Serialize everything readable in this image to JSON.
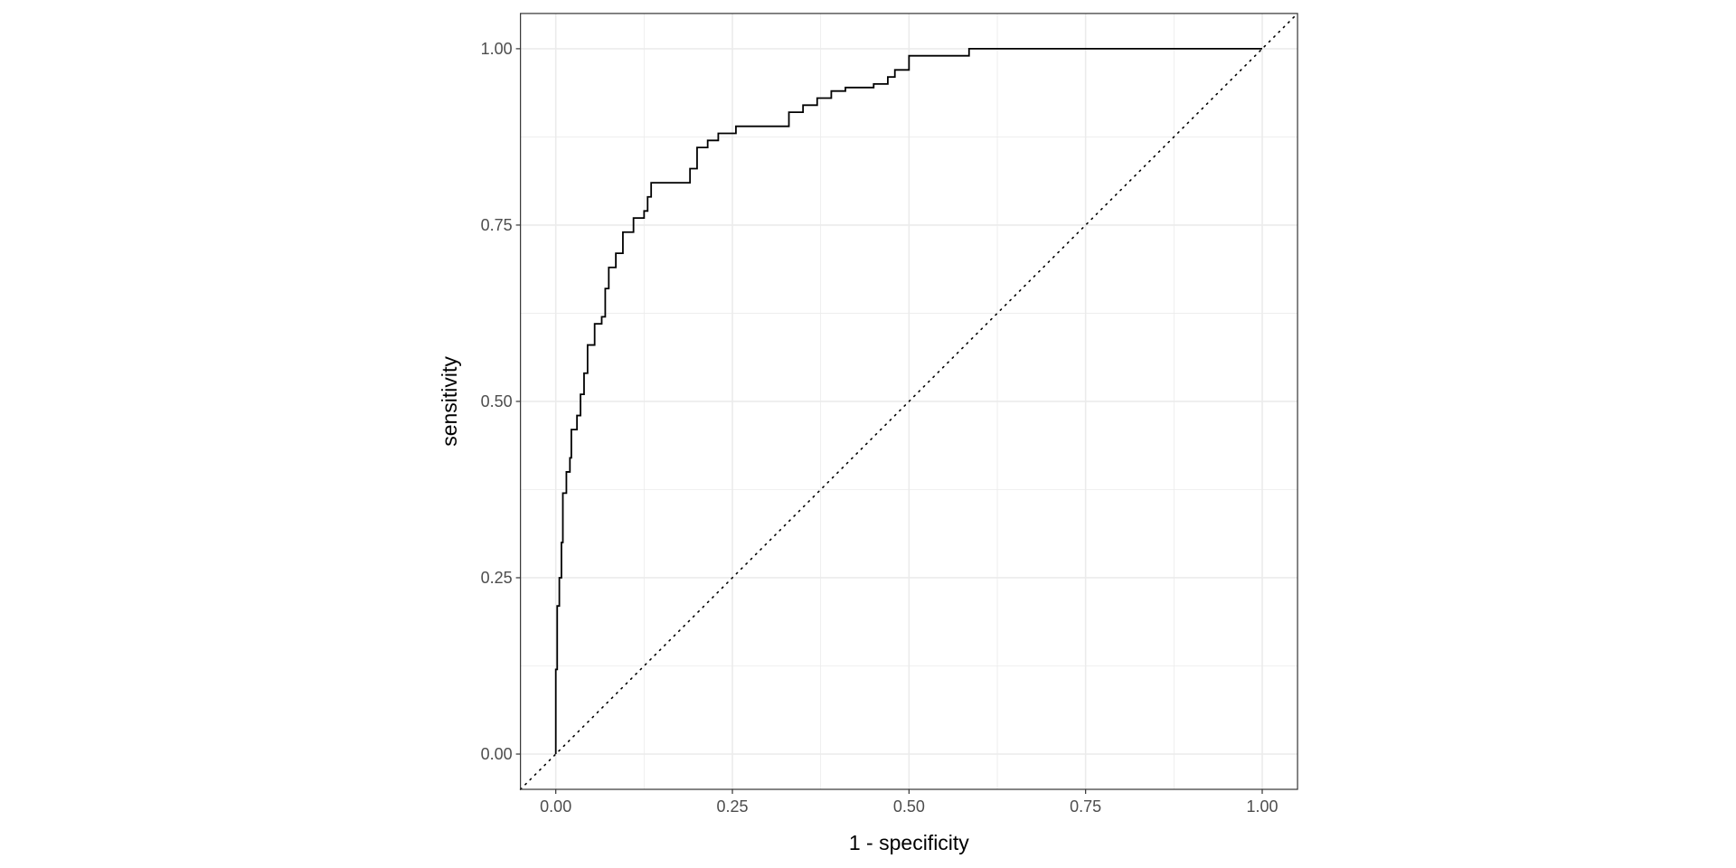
{
  "chart_data": {
    "type": "line",
    "title": "",
    "xlabel": "1 - specificity",
    "ylabel": "sensitivity",
    "xlim": [
      -0.05,
      1.05
    ],
    "ylim": [
      -0.05,
      1.05
    ],
    "grid": true,
    "xticks": [
      "0.00",
      "0.25",
      "0.50",
      "0.75",
      "1.00"
    ],
    "yticks": [
      "0.00",
      "0.25",
      "0.50",
      "0.75",
      "1.00"
    ],
    "reference_line": {
      "style": "dotted",
      "from": [
        0,
        0
      ],
      "to": [
        1,
        1
      ]
    },
    "series": [
      {
        "style": "step",
        "color": "#000000",
        "x": [
          0,
          0,
          0.002,
          0.005,
          0.008,
          0.01,
          0.015,
          0.02,
          0.022,
          0.03,
          0.035,
          0.04,
          0.045,
          0.055,
          0.065,
          0.07,
          0.075,
          0.085,
          0.095,
          0.11,
          0.125,
          0.13,
          0.135,
          0.165,
          0.19,
          0.2,
          0.215,
          0.23,
          0.255,
          0.33,
          0.35,
          0.37,
          0.39,
          0.41,
          0.45,
          0.47,
          0.48,
          0.5,
          0.585,
          1
        ],
        "y": [
          0,
          0.12,
          0.21,
          0.25,
          0.3,
          0.37,
          0.4,
          0.42,
          0.46,
          0.48,
          0.51,
          0.54,
          0.58,
          0.61,
          0.62,
          0.66,
          0.69,
          0.71,
          0.74,
          0.76,
          0.77,
          0.79,
          0.81,
          0.81,
          0.83,
          0.86,
          0.87,
          0.88,
          0.89,
          0.91,
          0.92,
          0.93,
          0.94,
          0.945,
          0.95,
          0.96,
          0.97,
          0.99,
          1.0,
          1.0
        ]
      }
    ]
  }
}
